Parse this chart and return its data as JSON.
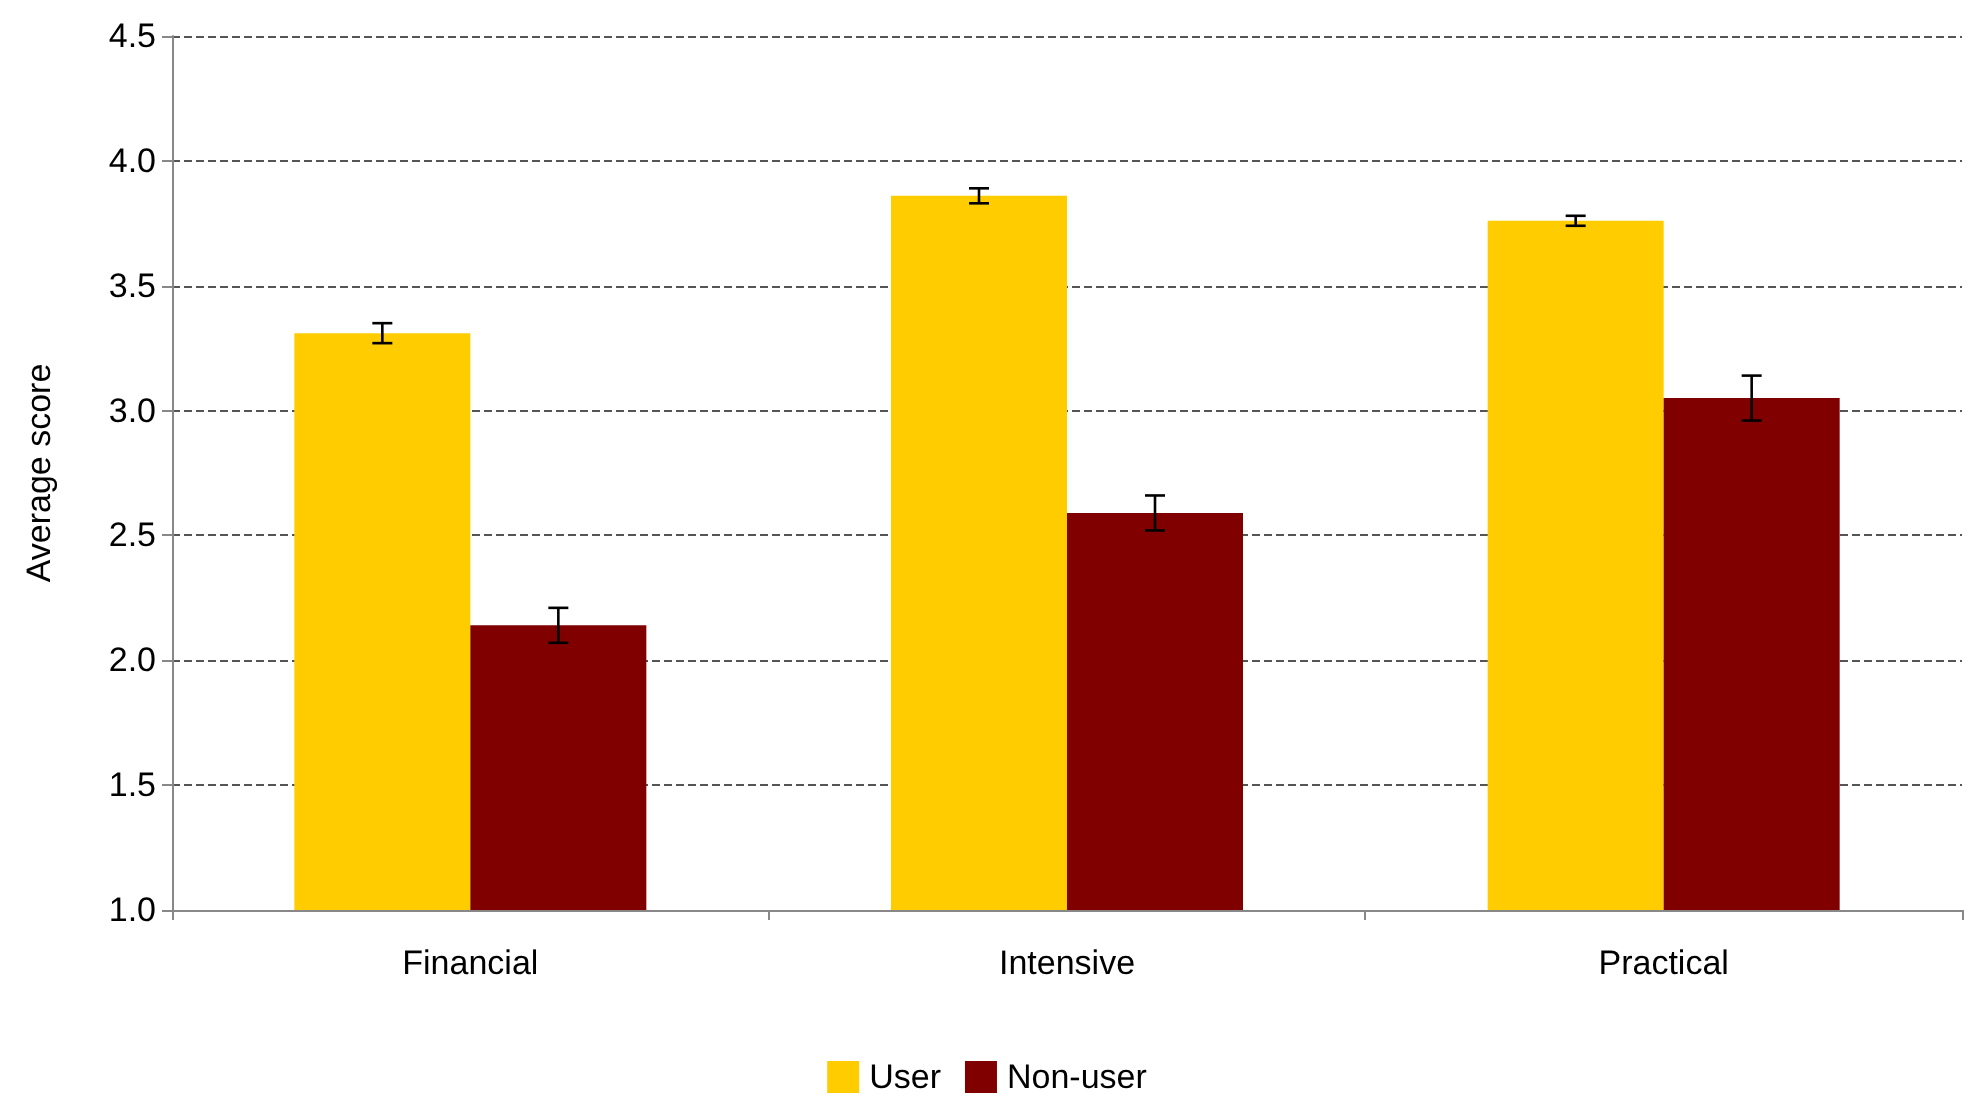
{
  "chart_data": {
    "type": "bar",
    "ylabel": "Average score",
    "categories": [
      "Financial",
      "Intensive",
      "Practical"
    ],
    "series": [
      {
        "name": "User",
        "color": "#ffcc00",
        "values": [
          3.31,
          3.86,
          3.76
        ],
        "errors": [
          0.04,
          0.03,
          0.02
        ]
      },
      {
        "name": "Non-user",
        "color": "#800000",
        "values": [
          2.14,
          2.59,
          3.05
        ],
        "errors": [
          0.07,
          0.07,
          0.09
        ]
      }
    ],
    "ylim": [
      1.0,
      4.5
    ],
    "yticks": [
      {
        "value": 1.0,
        "label": "1.0"
      },
      {
        "value": 1.5,
        "label": "1.5"
      },
      {
        "value": 2.0,
        "label": "2.0"
      },
      {
        "value": 2.5,
        "label": "2.5"
      },
      {
        "value": 3.0,
        "label": "3.0"
      },
      {
        "value": 3.5,
        "label": "3.5"
      },
      {
        "value": 4.0,
        "label": "4.0"
      },
      {
        "value": 4.5,
        "label": "4.5"
      }
    ],
    "grid": "y",
    "legend": "bottom",
    "line_style": "dashed"
  }
}
